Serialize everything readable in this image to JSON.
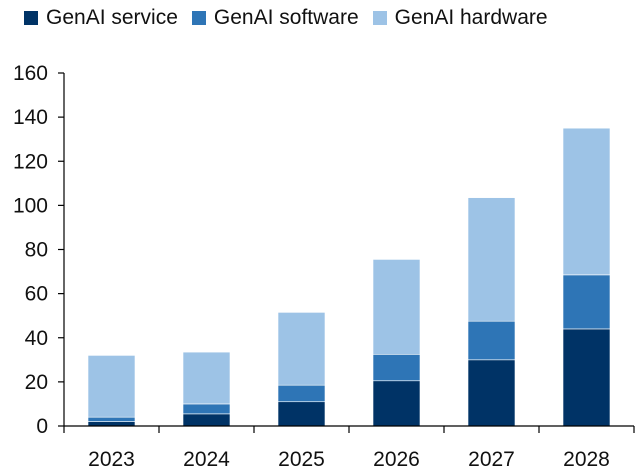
{
  "chart_data": {
    "type": "bar",
    "stacked": true,
    "categories": [
      "2023",
      "2024",
      "2025",
      "2026",
      "2027",
      "2028"
    ],
    "series": [
      {
        "name": "GenAI service",
        "color": "#003366",
        "values": [
          2,
          5.5,
          11,
          20.5,
          30,
          44
        ]
      },
      {
        "name": "GenAI software",
        "color": "#2E75B6",
        "values": [
          2,
          4.5,
          7.5,
          12,
          17.5,
          24.5
        ]
      },
      {
        "name": "GenAI hardware",
        "color": "#9DC3E6",
        "values": [
          28,
          23.5,
          33,
          43,
          56,
          66.5
        ]
      }
    ],
    "ylim": [
      0,
      160
    ],
    "yticks": [
      0,
      20,
      40,
      60,
      80,
      100,
      120,
      140,
      160
    ],
    "title": "",
    "xlabel": "",
    "ylabel": "",
    "grid": false,
    "legend_position": "top"
  }
}
